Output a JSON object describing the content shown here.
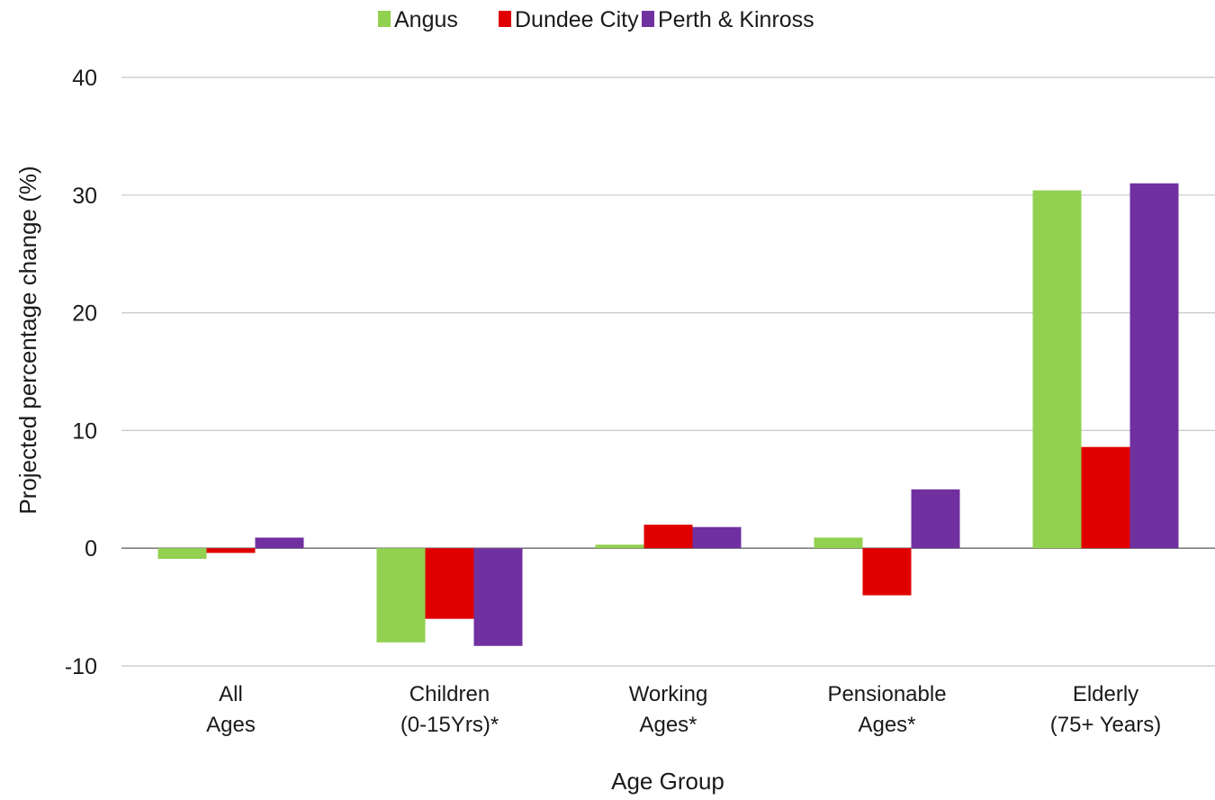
{
  "chart_data": {
    "type": "bar",
    "title": "",
    "xlabel": "Age Group",
    "ylabel": "Projected percentage change (%)",
    "ylim": [
      -10,
      40
    ],
    "yticks": [
      "-10",
      "0",
      "10",
      "20",
      "30",
      "40"
    ],
    "grid": true,
    "legend_position": "top-center",
    "categories": [
      [
        "All",
        "Ages"
      ],
      [
        "Children",
        "(0-15Yrs)*"
      ],
      [
        "Working",
        "Ages*"
      ],
      [
        "Pensionable",
        "Ages*"
      ],
      [
        "Elderly",
        "(75+ Years)"
      ]
    ],
    "series": [
      {
        "name": "Angus",
        "color": "#92d050",
        "values": [
          -0.9,
          -8.0,
          0.3,
          0.9,
          30.4
        ]
      },
      {
        "name": "Dundee City",
        "color": "#e00000",
        "values": [
          -0.4,
          -6.0,
          2.0,
          -4.0,
          8.6
        ]
      },
      {
        "name": "Perth & Kinross",
        "color": "#7030a0",
        "values": [
          0.9,
          -8.3,
          1.8,
          5.0,
          31.0
        ]
      }
    ]
  }
}
